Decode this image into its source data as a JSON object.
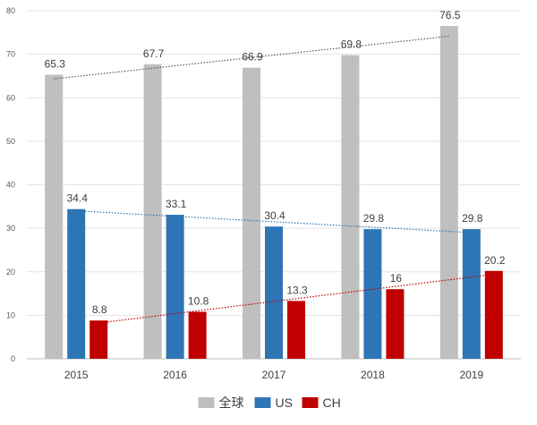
{
  "chart_data": {
    "type": "bar",
    "categories": [
      "2015",
      "2016",
      "2017",
      "2018",
      "2019"
    ],
    "series": [
      {
        "name": "全球",
        "color": "#bfbfbf",
        "trend_color": "#595959",
        "values": [
          65.3,
          67.7,
          66.9,
          69.8,
          76.5
        ]
      },
      {
        "name": "US",
        "color": "#2e75b6",
        "trend_color": "#2e75b6",
        "values": [
          34.4,
          33.1,
          30.4,
          29.8,
          29.8
        ]
      },
      {
        "name": "CH",
        "color": "#c00000",
        "trend_color": "#c00000",
        "values": [
          8.8,
          10.8,
          13.3,
          16,
          20.2
        ]
      }
    ],
    "ylim": [
      0,
      80
    ],
    "yticks": [
      "0",
      "10",
      "20",
      "30",
      "40",
      "50",
      "60",
      "70",
      "80"
    ],
    "grid": true,
    "trendlines": "linear, dotted",
    "legend_position": "bottom"
  }
}
